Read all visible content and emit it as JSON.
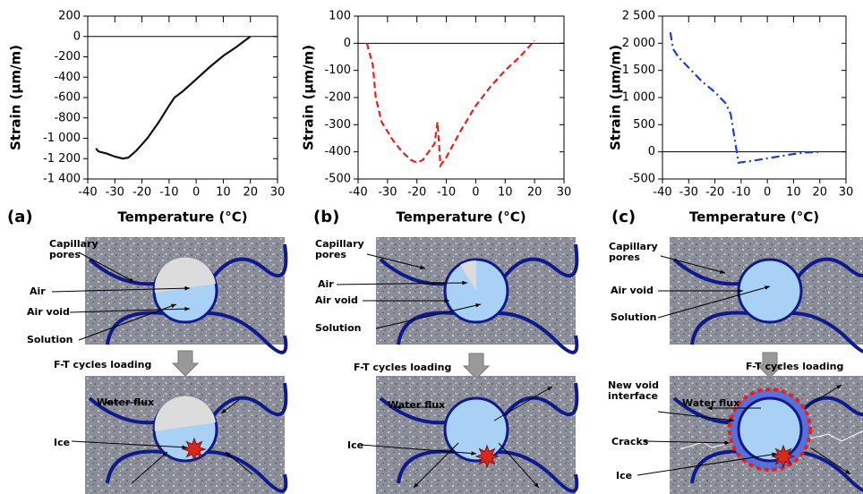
{
  "chart_data": [
    {
      "type": "line",
      "panel": "(a)",
      "xlabel": "Temperature (°C)",
      "ylabel": "Strain (μm/m)",
      "xlim": [
        -40,
        30
      ],
      "xticks": [
        -40,
        -30,
        -20,
        -10,
        0,
        10,
        20,
        30
      ],
      "ylim": [
        -1400,
        200
      ],
      "yticks": [
        {
          "value": -1400,
          "label": "-1 400"
        },
        {
          "value": -1200,
          "label": "-1 200"
        },
        {
          "value": -1000,
          "label": "-1 000"
        },
        -800,
        -600,
        -400,
        -200,
        0,
        200
      ],
      "x": [
        -37,
        -36,
        -33,
        -30,
        -27,
        -25,
        -22,
        -18,
        -14,
        -10,
        -8,
        -7,
        -5,
        0,
        5,
        10,
        15,
        20
      ],
      "series": [
        {
          "color": "#111111",
          "style": "solid",
          "values": [
            -1100,
            -1130,
            -1150,
            -1180,
            -1200,
            -1190,
            -1120,
            -1000,
            -850,
            -680,
            -600,
            -580,
            -540,
            -420,
            -300,
            -190,
            -100,
            0
          ]
        }
      ]
    },
    {
      "type": "line",
      "panel": "(b)",
      "xlabel": "Temperature (°C)",
      "ylabel": "Strain (μm/m)",
      "xlim": [
        -40,
        30
      ],
      "xticks": [
        -40,
        -30,
        -20,
        -10,
        0,
        10,
        20,
        30
      ],
      "ylim": [
        -500,
        100
      ],
      "yticks": [
        -500,
        -400,
        -300,
        -200,
        -100,
        0,
        100
      ],
      "x": [
        -37,
        -36,
        -35,
        -34,
        -32,
        -28,
        -25,
        -22,
        -20,
        -18,
        -16,
        -14,
        -13,
        -12,
        -10,
        -5,
        0,
        5,
        10,
        15,
        20
      ],
      "series": [
        {
          "color": "#e8201c",
          "style": "dashed",
          "values": [
            0,
            -40,
            -80,
            -200,
            -290,
            -360,
            -400,
            -430,
            -440,
            -430,
            -400,
            -370,
            -290,
            -450,
            -420,
            -320,
            -230,
            -160,
            -100,
            -50,
            10
          ]
        }
      ]
    },
    {
      "type": "line",
      "panel": "(c)",
      "xlabel": "Temperature (°C)",
      "ylabel": "Strain (μm/m)",
      "xlim": [
        -40,
        30
      ],
      "xticks": [
        -40,
        -30,
        -20,
        -10,
        0,
        10,
        20,
        30
      ],
      "ylim": [
        -500,
        2500
      ],
      "yticks": [
        -500,
        0,
        500,
        {
          "value": 1000,
          "label": "1 000"
        },
        {
          "value": 1500,
          "label": "1 500"
        },
        {
          "value": 2000,
          "label": "2 000"
        },
        {
          "value": 2500,
          "label": "2 500"
        }
      ],
      "x": [
        -37,
        -36,
        -34,
        -30,
        -25,
        -20,
        -16,
        -14,
        -13,
        -12,
        -11,
        -5,
        0,
        5,
        10,
        15,
        20
      ],
      "series": [
        {
          "color": "#1a3fcf",
          "style": "dashdot",
          "values": [
            2200,
            1900,
            1750,
            1550,
            1300,
            1100,
            900,
            700,
            400,
            100,
            -200,
            -160,
            -120,
            -80,
            -40,
            -10,
            0
          ]
        }
      ]
    }
  ],
  "panels": [
    {
      "top_labels": [
        "Capillary pores",
        "Air",
        "Air void",
        "Solution"
      ],
      "loading": "F-T cycles loading",
      "bottom_labels": [
        "Water flux",
        "Ice"
      ]
    },
    {
      "top_labels": [
        "Capillary pores",
        "Air",
        "Air void",
        "Solution"
      ],
      "loading": "F-T cycles loading",
      "bottom_labels": [
        "Water flux",
        "Ice"
      ]
    },
    {
      "top_labels": [
        "Capillary pores",
        "Air void",
        "Solution"
      ],
      "loading": "F-T cycles loading",
      "bottom_labels": [
        "New void interface",
        "Water flux",
        "Cracks",
        "Ice"
      ]
    }
  ]
}
